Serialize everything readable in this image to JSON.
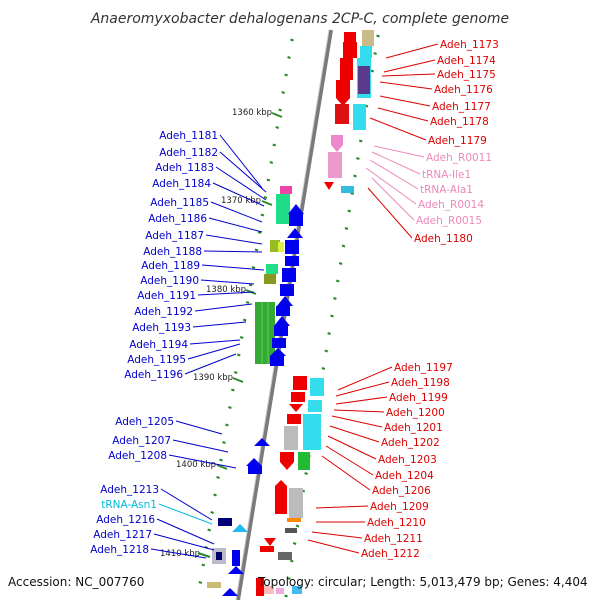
{
  "title": "Anaeromyxobacter dehalogenans 2CP-C, complete genome",
  "accession": "Accession: NC_007760",
  "topology": "Topology: circular; Length: 5,013,479 bp; Genes: 4,404",
  "colors": {
    "left_labels": "#0000cc",
    "right_labels": "#dd0000",
    "rna_labels": "#ee88bb",
    "trna_left": "#00bbdd",
    "backbone": "#888888",
    "ticks": "#2a8a2a"
  },
  "kbp_markers": [
    "1360 kbp",
    "1370 kbp",
    "1380 kbp",
    "1390 kbp",
    "1400 kbp",
    "1410 kbp"
  ],
  "left_labels": [
    "Adeh_1181",
    "Adeh_1182",
    "Adeh_1183",
    "Adeh_1184",
    "Adeh_1185",
    "Adeh_1186",
    "Adeh_1187",
    "Adeh_1188",
    "Adeh_1189",
    "Adeh_1190",
    "Adeh_1191",
    "Adeh_1192",
    "Adeh_1193",
    "Adeh_1194",
    "Adeh_1195",
    "Adeh_1196",
    "Adeh_1205",
    "Adeh_1207",
    "Adeh_1208",
    "Adeh_1213",
    "tRNA-Asn1",
    "Adeh_1216",
    "Adeh_1217",
    "Adeh_1218"
  ],
  "right_labels": [
    "Adeh_1173",
    "Adeh_1174",
    "Adeh_1175",
    "Adeh_1176",
    "Adeh_1177",
    "Adeh_1178",
    "Adeh_1179",
    "Adeh_R0011",
    "tRNA-Ile1",
    "tRNA-Ala1",
    "Adeh_R0014",
    "Adeh_R0015",
    "Adeh_1180",
    "Adeh_1197",
    "Adeh_1198",
    "Adeh_1199",
    "Adeh_1200",
    "Adeh_1201",
    "Adeh_1202",
    "Adeh_1203",
    "Adeh_1204",
    "Adeh_1206",
    "Adeh_1209",
    "Adeh_1210",
    "Adeh_1211",
    "Adeh_1212"
  ]
}
